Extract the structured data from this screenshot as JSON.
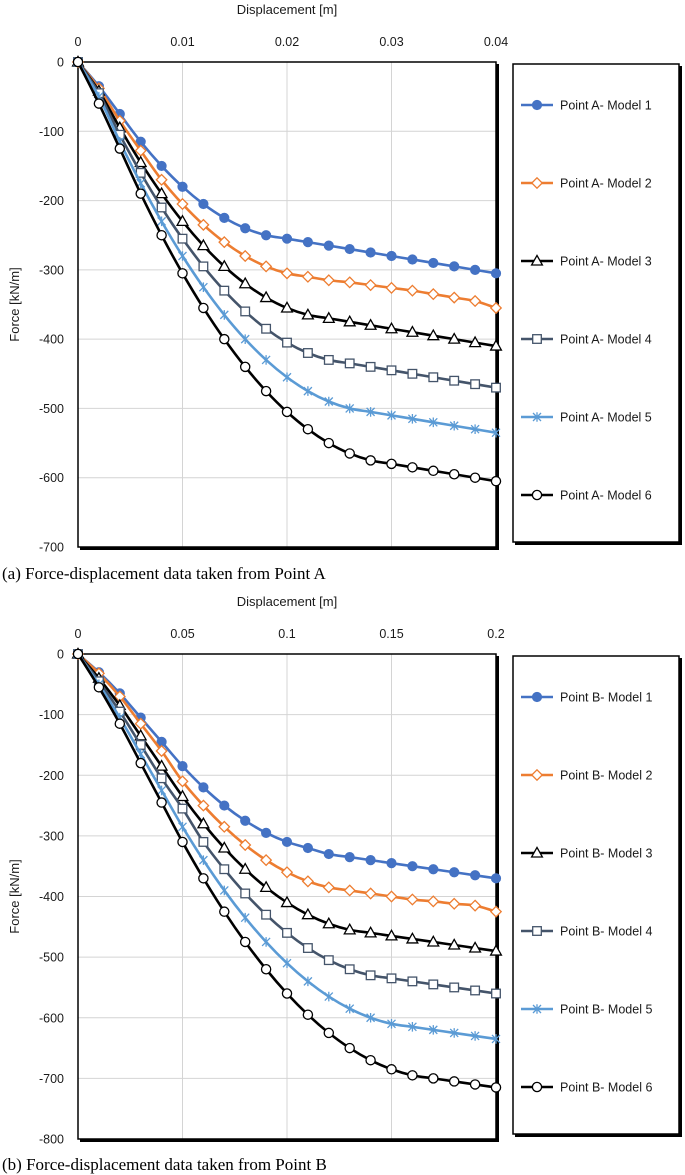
{
  "chart_data": [
    {
      "type": "line",
      "title": "",
      "xlabel": "Displacement [m]",
      "ylabel": "Force [kN/m]",
      "caption": "(a) Force-displacement data taken from Point A",
      "xlim": [
        0,
        0.04
      ],
      "ylim": [
        -700,
        0
      ],
      "xticks": [
        0,
        0.01,
        0.02,
        0.03,
        0.04
      ],
      "xtick_labels": [
        "0",
        "0.01",
        "0.02",
        "0.03",
        "0.04"
      ],
      "yticks": [
        0,
        -100,
        -200,
        -300,
        -400,
        -500,
        -600,
        -700
      ],
      "ytick_labels": [
        "0",
        "-100",
        "-200",
        "-300",
        "-400",
        "-500",
        "-600",
        "-700"
      ],
      "grid": true,
      "legend_position": "right",
      "x": [
        0,
        0.002,
        0.004,
        0.006,
        0.008,
        0.01,
        0.012,
        0.014,
        0.016,
        0.018,
        0.02,
        0.022,
        0.024,
        0.026,
        0.028,
        0.03,
        0.032,
        0.034,
        0.036,
        0.038,
        0.04
      ],
      "series": [
        {
          "name": "Point A- Model 1",
          "color": "#4472c4",
          "marker": "filled-circle",
          "values": [
            0,
            -35,
            -75,
            -115,
            -150,
            -180,
            -205,
            -225,
            -240,
            -250,
            -255,
            -260,
            -265,
            -270,
            -275,
            -280,
            -285,
            -290,
            -295,
            -300,
            -305
          ]
        },
        {
          "name": "Point A- Model 2",
          "color": "#ed7d31",
          "marker": "diamond",
          "values": [
            0,
            -38,
            -85,
            -128,
            -170,
            -205,
            -235,
            -260,
            -280,
            -295,
            -305,
            -310,
            -315,
            -318,
            -322,
            -326,
            -330,
            -335,
            -340,
            -345,
            -355
          ]
        },
        {
          "name": "Point A- Model 3",
          "color": "#000000",
          "marker": "triangle",
          "values": [
            0,
            -42,
            -95,
            -145,
            -190,
            -230,
            -265,
            -295,
            -320,
            -340,
            -355,
            -365,
            -370,
            -375,
            -380,
            -385,
            -390,
            -395,
            -400,
            -405,
            -410
          ]
        },
        {
          "name": "Point A- Model 4",
          "color": "#44546a",
          "marker": "square",
          "values": [
            0,
            -45,
            -105,
            -160,
            -210,
            -255,
            -295,
            -330,
            -360,
            -385,
            -405,
            -420,
            -430,
            -435,
            -440,
            -445,
            -450,
            -455,
            -460,
            -465,
            -470
          ]
        },
        {
          "name": "Point A- Model 5",
          "color": "#5b9bd5",
          "marker": "asterisk",
          "values": [
            0,
            -50,
            -115,
            -175,
            -230,
            -280,
            -325,
            -365,
            -400,
            -430,
            -455,
            -475,
            -490,
            -500,
            -505,
            -510,
            -515,
            -520,
            -525,
            -530,
            -535
          ]
        },
        {
          "name": "Point A- Model 6",
          "color": "#000000",
          "marker": "open-circle",
          "values": [
            0,
            -60,
            -125,
            -190,
            -250,
            -305,
            -355,
            -400,
            -440,
            -475,
            -505,
            -530,
            -550,
            -565,
            -575,
            -580,
            -585,
            -590,
            -595,
            -600,
            -605
          ]
        }
      ]
    },
    {
      "type": "line",
      "title": "",
      "xlabel": "Displacement [m]",
      "ylabel": "Force [kN/m]",
      "caption": "(b) Force-displacement data taken from Point B",
      "xlim": [
        0,
        0.2
      ],
      "ylim": [
        -800,
        0
      ],
      "xticks": [
        0,
        0.05,
        0.1,
        0.15,
        0.2
      ],
      "xtick_labels": [
        "0",
        "0.05",
        "0.1",
        "0.15",
        "0.2"
      ],
      "yticks": [
        0,
        -100,
        -200,
        -300,
        -400,
        -500,
        -600,
        -700,
        -800
      ],
      "ytick_labels": [
        "0",
        "-100",
        "-200",
        "-300",
        "-400",
        "-500",
        "-600",
        "-700",
        "-800"
      ],
      "grid": true,
      "legend_position": "right",
      "x": [
        0,
        0.01,
        0.02,
        0.03,
        0.04,
        0.05,
        0.06,
        0.07,
        0.08,
        0.09,
        0.1,
        0.11,
        0.12,
        0.13,
        0.14,
        0.15,
        0.16,
        0.17,
        0.18,
        0.19,
        0.2
      ],
      "series": [
        {
          "name": "Point B- Model 1",
          "color": "#4472c4",
          "marker": "filled-circle",
          "values": [
            0,
            -30,
            -65,
            -105,
            -145,
            -185,
            -220,
            -250,
            -275,
            -295,
            -310,
            -320,
            -330,
            -335,
            -340,
            -345,
            -350,
            -355,
            -360,
            -365,
            -370
          ]
        },
        {
          "name": "Point B- Model 2",
          "color": "#ed7d31",
          "marker": "diamond",
          "values": [
            0,
            -32,
            -70,
            -115,
            -160,
            -210,
            -250,
            -285,
            -315,
            -340,
            -360,
            -375,
            -385,
            -390,
            -395,
            -400,
            -405,
            -408,
            -412,
            -415,
            -425
          ]
        },
        {
          "name": "Point B- Model 3",
          "color": "#000000",
          "marker": "triangle",
          "values": [
            0,
            -40,
            -85,
            -135,
            -185,
            -235,
            -280,
            -320,
            -355,
            -385,
            -410,
            -430,
            -445,
            -455,
            -460,
            -465,
            -470,
            -475,
            -480,
            -485,
            -490
          ]
        },
        {
          "name": "Point B- Model 4",
          "color": "#44546a",
          "marker": "square",
          "values": [
            0,
            -45,
            -95,
            -150,
            -205,
            -255,
            -310,
            -355,
            -395,
            -430,
            -460,
            -485,
            -505,
            -520,
            -530,
            -535,
            -540,
            -545,
            -550,
            -555,
            -560
          ]
        },
        {
          "name": "Point B- Model 5",
          "color": "#5b9bd5",
          "marker": "asterisk",
          "values": [
            0,
            -50,
            -105,
            -165,
            -225,
            -285,
            -340,
            -390,
            -435,
            -475,
            -510,
            -540,
            -565,
            -585,
            -600,
            -610,
            -615,
            -620,
            -625,
            -630,
            -635
          ]
        },
        {
          "name": "Point B- Model 6",
          "color": "#000000",
          "marker": "open-circle",
          "values": [
            0,
            -55,
            -115,
            -180,
            -245,
            -310,
            -370,
            -425,
            -475,
            -520,
            -560,
            -595,
            -625,
            -650,
            -670,
            -685,
            -695,
            -700,
            -705,
            -710,
            -715
          ]
        }
      ]
    }
  ]
}
